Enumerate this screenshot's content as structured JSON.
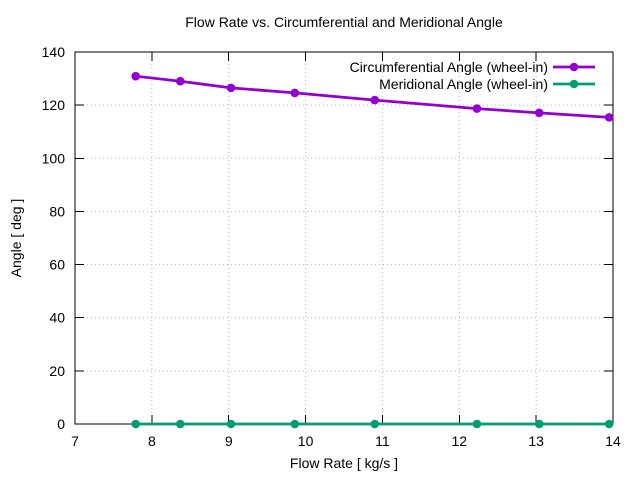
{
  "window": {
    "background": "#ffffff"
  },
  "chart_data": {
    "type": "line",
    "title": "Flow Rate vs. Circumferential and Meridional Angle",
    "xlabel": "Flow Rate [ kg/s ]",
    "ylabel": "Angle [ deg ]",
    "xlim": [
      7,
      14
    ],
    "ylim": [
      0,
      140
    ],
    "xticks": [
      7,
      8,
      9,
      10,
      11,
      12,
      13,
      14
    ],
    "yticks": [
      0,
      20,
      40,
      60,
      80,
      100,
      120,
      140
    ],
    "grid": true,
    "grid_style": "dotted",
    "legend_position": "top-right-inside",
    "x": [
      7.79,
      8.37,
      9.03,
      9.86,
      10.9,
      12.23,
      13.04,
      13.95
    ],
    "series": [
      {
        "name": "Circumferential Angle (wheel-in)",
        "color": "#9400D3",
        "marker": "filled-circle",
        "values": [
          130.9,
          129.0,
          126.5,
          124.6,
          121.9,
          118.7,
          117.1,
          115.4
        ]
      },
      {
        "name": "Meridional Angle (wheel-in)",
        "color": "#009E73",
        "marker": "filled-circle",
        "values": [
          0,
          0,
          0,
          0,
          0,
          0,
          0,
          0
        ]
      }
    ]
  },
  "colors": {
    "border": "#000000",
    "grid": "#bbbbbb",
    "text": "#000000",
    "background": "#ffffff"
  }
}
